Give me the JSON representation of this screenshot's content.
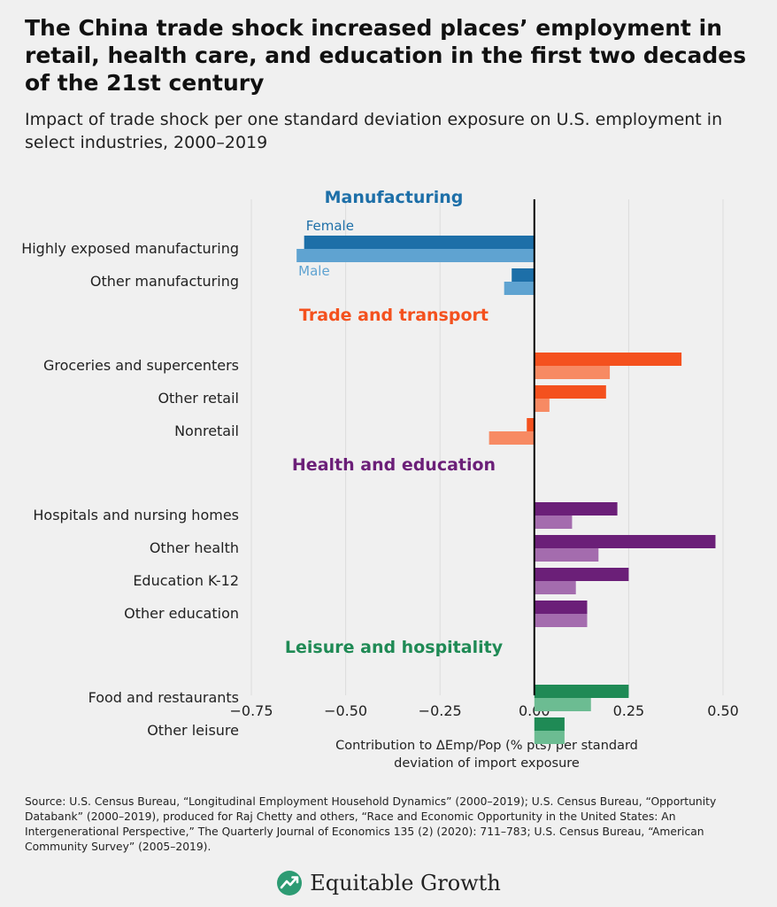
{
  "header": {
    "title": "The China trade shock increased places’ employment in retail, health care, and education in the first two decades of the 21st century",
    "subtitle": "Impact of trade shock per one standard deviation exposure on U.S. employment in select industries, 2000–2019"
  },
  "chart_data": {
    "type": "bar",
    "orientation": "horizontal",
    "xlabel": "Contribution to ΔEmp/Pop (% pts) per standard deviation of import exposure",
    "xlim": [
      -0.75,
      0.5
    ],
    "xticks": [
      -0.75,
      -0.5,
      -0.25,
      0.0,
      0.25,
      0.5
    ],
    "xtick_labels": [
      "−0.75",
      "−0.50",
      "−0.25",
      "0.00",
      "0.25",
      "0.50"
    ],
    "legend": {
      "female": "Female",
      "male": "Male"
    },
    "groups": [
      {
        "name": "Manufacturing",
        "color_female": "#1d6fa8",
        "color_male": "#5fa3d1",
        "label_color": "#1d6fa8",
        "items": [
          {
            "label": "Highly exposed manufacturing",
            "female": -0.61,
            "male": -0.63
          },
          {
            "label": "Other manufacturing",
            "female": -0.06,
            "male": -0.08
          }
        ]
      },
      {
        "name": "Trade and transport",
        "color_female": "#f4511e",
        "color_male": "#f78a63",
        "label_color": "#f4511e",
        "items": [
          {
            "label": "Groceries and supercenters",
            "female": 0.39,
            "male": 0.2
          },
          {
            "label": "Other retail",
            "female": 0.19,
            "male": 0.04
          },
          {
            "label": "Nonretail",
            "female": -0.02,
            "male": -0.12
          }
        ]
      },
      {
        "name": "Health and education",
        "color_female": "#6b1f78",
        "color_male": "#a46cae",
        "label_color": "#6b1f78",
        "items": [
          {
            "label": "Hospitals and nursing homes",
            "female": 0.22,
            "male": 0.1
          },
          {
            "label": "Other health",
            "female": 0.48,
            "male": 0.17
          },
          {
            "label": "Education K-12",
            "female": 0.25,
            "male": 0.11
          },
          {
            "label": "Other education",
            "female": 0.14,
            "male": 0.14
          }
        ]
      },
      {
        "name": "Leisure and hospitality",
        "color_female": "#1f8a55",
        "color_male": "#6cbc92",
        "label_color": "#1f8a55",
        "items": [
          {
            "label": "Food and restaurants",
            "female": 0.25,
            "male": 0.15
          },
          {
            "label": "Other leisure",
            "female": 0.08,
            "male": 0.08
          }
        ]
      }
    ]
  },
  "footer": {
    "source": "Source: U.S. Census Bureau, “Longitudinal Employment Household Dynamics” (2000–2019); U.S. Census Bureau, “Opportunity Databank” (2000–2019), produced for Raj Chetty and others, “Race and Economic Opportunity in the United States: An Intergenerational Perspective,” The Quarterly Journal of Economics 135 (2) (2020): 711–783; U.S. Census Bureau, “American Community Survey” (2005–2019).",
    "brand_name": "Equitable Growth",
    "brand_icon": "growth-arrow-icon"
  }
}
